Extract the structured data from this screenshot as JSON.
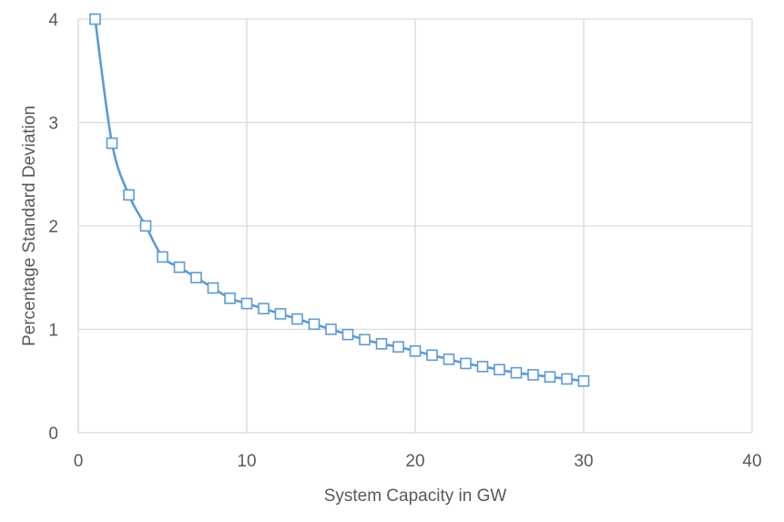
{
  "chart_data": {
    "type": "scatter",
    "title": "",
    "xlabel": "System Capacity in GW",
    "ylabel": "Percentage Standard Deviation",
    "xlim": [
      0,
      40
    ],
    "ylim": [
      0,
      4
    ],
    "xticks": [
      "0",
      "10",
      "20",
      "30",
      "40"
    ],
    "yticks": [
      "0",
      "1",
      "2",
      "3",
      "4"
    ],
    "grid": true,
    "legend": "none",
    "smooth_line": true,
    "marker": "square-open",
    "color": "#5b9bd5",
    "series": [
      {
        "x": [
          1,
          2,
          3,
          4,
          5,
          6,
          7,
          8,
          9,
          10,
          11,
          12,
          13,
          14,
          15,
          16,
          17,
          18,
          19,
          20,
          21,
          22,
          23,
          24,
          25,
          26,
          27,
          28,
          29,
          30
        ],
        "y": [
          4.0,
          2.8,
          2.3,
          2.0,
          1.7,
          1.6,
          1.5,
          1.4,
          1.3,
          1.25,
          1.2,
          1.15,
          1.1,
          1.05,
          1.0,
          0.95,
          0.9,
          0.86,
          0.83,
          0.79,
          0.75,
          0.71,
          0.67,
          0.64,
          0.61,
          0.58,
          0.56,
          0.54,
          0.52,
          0.5
        ]
      }
    ]
  }
}
